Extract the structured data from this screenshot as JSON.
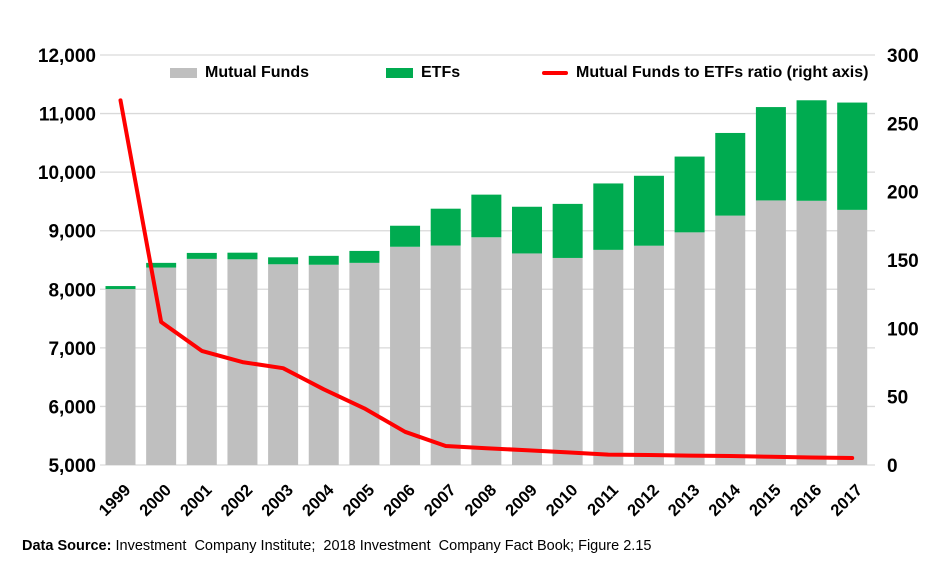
{
  "chart_data": {
    "type": "bar",
    "subtype": "stacked-bars-with-line",
    "title": "",
    "xlabel": "",
    "ylabel": "",
    "grid": "horizontal",
    "legend_position": "top-inside",
    "categories": [
      "1999",
      "2000",
      "2001",
      "2002",
      "2003",
      "2004",
      "2005",
      "2006",
      "2007",
      "2008",
      "2009",
      "2010",
      "2011",
      "2012",
      "2013",
      "2014",
      "2015",
      "2016",
      "2017"
    ],
    "series": [
      {
        "name": "Mutual Funds",
        "type": "bar",
        "stack": "funds",
        "axis": "left",
        "color": "#BFBFBF",
        "values": [
          8004,
          8371,
          8519,
          8512,
          8427,
          8419,
          8451,
          8726,
          8747,
          8888,
          8612,
          8535,
          8673,
          8744,
          8972,
          9258,
          9517,
          9511,
          9356
        ]
      },
      {
        "name": "ETFs",
        "type": "bar",
        "stack": "funds",
        "axis": "left",
        "color": "#00AB50",
        "values": [
          30,
          80,
          102,
          113,
          119,
          152,
          204,
          359,
          629,
          728,
          797,
          923,
          1134,
          1194,
          1294,
          1411,
          1594,
          1716,
          1832
        ]
      },
      {
        "name": "Mutual Funds to ETFs ratio (right axis)",
        "type": "line",
        "axis": "right",
        "color": "#FF0000",
        "values": [
          266.8,
          104.6,
          83.5,
          75.3,
          70.8,
          55.4,
          41.4,
          24.3,
          13.9,
          12.2,
          10.8,
          9.2,
          7.6,
          7.3,
          6.9,
          6.6,
          6.0,
          5.5,
          5.1
        ]
      }
    ],
    "left_axis": {
      "min": 5000,
      "max": 12000,
      "step": 1000,
      "tick_labels": [
        "5,000",
        "6,000",
        "7,000",
        "8,000",
        "9,000",
        "10,000",
        "11,000",
        "12,000"
      ]
    },
    "right_axis": {
      "min": 0,
      "max": 300,
      "step": 50,
      "tick_labels": [
        "0",
        "50",
        "100",
        "150",
        "200",
        "250",
        "300"
      ]
    },
    "gridline_color": "#D9D9D9"
  },
  "legend": {
    "mutual_funds_label": "Mutual Funds",
    "etfs_label": "ETFs",
    "ratio_label": "Mutual Funds to ETFs ratio (right axis)"
  },
  "source": {
    "label": "Data Source:",
    "text": " Investment  Company Institute;  2018 Investment  Company Fact Book; Figure 2.15"
  }
}
